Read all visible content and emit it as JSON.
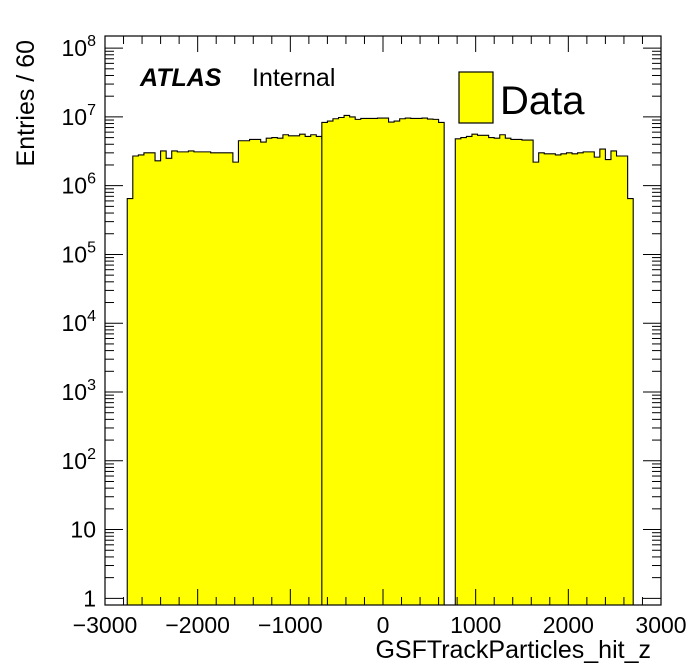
{
  "chart_data": {
    "type": "bar",
    "xlabel": "GSFTrackParticles_hit_z",
    "ylabel": "Entries / 60",
    "xlim": [
      -3000,
      3000
    ],
    "ylim": [
      0.8,
      150000000
    ],
    "y_scale": "log",
    "bin_width": 60,
    "x_ticks": [
      -3000,
      -2000,
      -1000,
      0,
      1000,
      2000,
      3000
    ],
    "x_tick_labels": [
      "−3000",
      "−2000",
      "−1000",
      "0",
      "1000",
      "2000",
      "3000"
    ],
    "y_ticks": [
      {
        "value": 1,
        "base": "1",
        "exp": ""
      },
      {
        "value": 10,
        "base": "10",
        "exp": ""
      },
      {
        "value": 100,
        "base": "10",
        "exp": "2"
      },
      {
        "value": 1000,
        "base": "10",
        "exp": "3"
      },
      {
        "value": 10000,
        "base": "10",
        "exp": "4"
      },
      {
        "value": 100000,
        "base": "10",
        "exp": "5"
      },
      {
        "value": 1000000,
        "base": "10",
        "exp": "6"
      },
      {
        "value": 10000000,
        "base": "10",
        "exp": "7"
      },
      {
        "value": 100000000,
        "base": "10",
        "exp": "8"
      }
    ],
    "series": [
      {
        "name": "Data",
        "color": "#ffff00",
        "segments": [
          {
            "x_start": -2760,
            "values": [
              650000,
              2700000,
              2800000,
              3000000,
              3000000,
              2300000,
              3200000,
              2500000,
              3200000,
              3100000,
              3100000,
              3200000,
              3100000,
              3100000,
              3100000,
              3000000,
              3000000,
              3000000,
              3000000,
              2200000,
              4500000,
              4500000,
              4700000,
              4700000,
              4300000,
              4900000,
              5000000,
              4900000,
              5500000,
              5300000,
              5300000,
              5600000,
              5200000,
              5500000,
              5200000,
              4800000
            ]
          },
          {
            "x_start": -660,
            "values": [
              8300000,
              8700000,
              9400000,
              9800000,
              10500000,
              10000000,
              9200000,
              9500000,
              9500000,
              9500000,
              9600000,
              9600000,
              8400000,
              8700000,
              9400000,
              9600000,
              9500000,
              9500000,
              9600000,
              9300000,
              9200000,
              8300000
            ]
          },
          {
            "x_start": 780,
            "values": [
              4800000,
              5000000,
              5200000,
              5600000,
              5400000,
              5400000,
              5000000,
              4900000,
              5500000,
              4900000,
              4700000,
              4700000,
              4600000,
              4600000,
              2200000,
              3000000,
              2900000,
              2900000,
              2800000,
              2900000,
              3000000,
              2900000,
              3000000,
              3100000,
              3100000,
              2600000,
              3400000,
              2400000,
              3200000,
              2700000,
              2700000,
              650000
            ]
          }
        ]
      }
    ],
    "legend": {
      "position": "top-right",
      "entries": [
        "Data"
      ]
    },
    "annotations": {
      "atlas_label": "ATLAS",
      "atlas_sublabel": "Internal"
    },
    "grid": false
  }
}
